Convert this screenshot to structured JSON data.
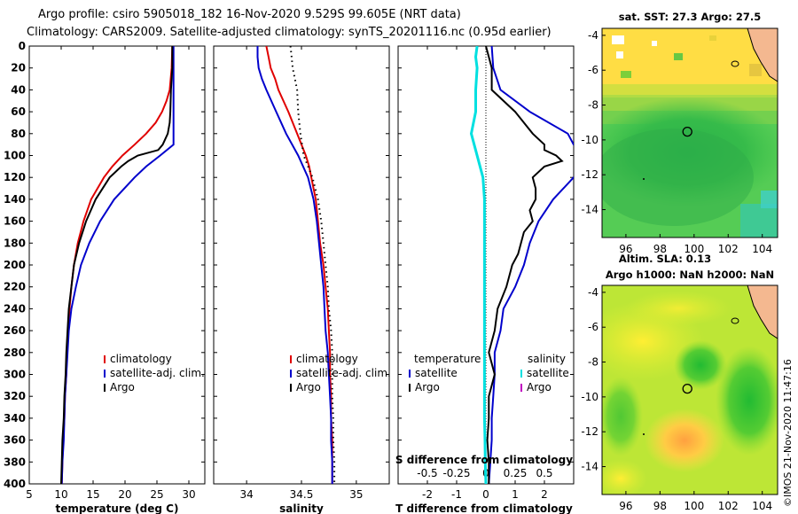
{
  "figure": {
    "title_line1": "Argo profile: csiro 5905018_182 16-Nov-2020 9.529S 99.605E (NRT data)",
    "title_line2": "Climatology: CARS2009. Satellite-adjusted climatology: synTS_20201116.nc (0.95d earlier)",
    "footer": "©IMOS 21-Nov-2020 11:47:16",
    "colors": {
      "climatology": "#e00000",
      "satellite": "#0000cc",
      "argo": "#000000",
      "salinity_satellite": "#00e0e0",
      "salinity_argo": "#c000c0"
    }
  },
  "chart_data": [
    {
      "id": "temperature",
      "type": "line",
      "xlabel": "temperature (deg C)",
      "ylabel": "depth",
      "xlim": [
        5,
        32.5
      ],
      "ylim": [
        400,
        0
      ],
      "xticks": [
        5,
        10,
        15,
        20,
        25,
        30
      ],
      "yticks": [
        0,
        20,
        40,
        60,
        80,
        100,
        120,
        140,
        160,
        180,
        200,
        220,
        240,
        260,
        280,
        300,
        320,
        340,
        360,
        380,
        400
      ],
      "legend": [
        "climatology",
        "satellite-adj. clim.",
        "Argo"
      ],
      "series": [
        {
          "name": "climatology",
          "depth": [
            0,
            20,
            40,
            50,
            60,
            70,
            80,
            90,
            100,
            110,
            120,
            140,
            160,
            180,
            200,
            220,
            240,
            260,
            280,
            300,
            320,
            340,
            360,
            380,
            400
          ],
          "value": [
            27.4,
            27.3,
            27.0,
            26.5,
            25.8,
            24.8,
            23.3,
            21.5,
            19.6,
            18.0,
            16.7,
            14.7,
            13.5,
            12.6,
            12.0,
            11.6,
            11.3,
            11.1,
            10.9,
            10.8,
            10.6,
            10.5,
            10.3,
            10.2,
            10.1
          ]
        },
        {
          "name": "satellite-adj. clim.",
          "depth": [
            0,
            20,
            40,
            60,
            80,
            90,
            100,
            110,
            120,
            140,
            160,
            180,
            200,
            220,
            240,
            260,
            280,
            300,
            320,
            340,
            360,
            380,
            400
          ],
          "value": [
            27.6,
            27.6,
            27.6,
            27.6,
            27.6,
            27.6,
            25.5,
            23.3,
            21.5,
            18.3,
            16.1,
            14.4,
            13.1,
            12.3,
            11.6,
            11.2,
            11.0,
            10.8,
            10.6,
            10.5,
            10.4,
            10.2,
            10.1
          ]
        },
        {
          "name": "Argo",
          "depth": [
            0,
            20,
            40,
            60,
            70,
            80,
            90,
            95,
            100,
            105,
            110,
            120,
            140,
            160,
            180,
            200,
            220,
            240,
            260,
            280,
            300,
            320,
            340,
            360,
            380,
            400
          ],
          "value": [
            27.4,
            27.4,
            27.2,
            27.1,
            27.0,
            26.7,
            25.9,
            25.2,
            22.0,
            20.5,
            19.4,
            17.6,
            15.4,
            13.9,
            12.8,
            12.0,
            11.6,
            11.2,
            11.0,
            10.8,
            10.7,
            10.5,
            10.4,
            10.2,
            10.1,
            10.0
          ]
        }
      ]
    },
    {
      "id": "salinity",
      "type": "line",
      "xlabel": "salinity",
      "xlim": [
        33.7,
        35.3
      ],
      "ylim": [
        400,
        0
      ],
      "xticks": [
        34,
        34.5,
        35
      ],
      "legend": [
        "climatology",
        "satellite-adj. clim.",
        "Argo"
      ],
      "series": [
        {
          "name": "climatology",
          "depth": [
            0,
            10,
            20,
            30,
            40,
            60,
            80,
            100,
            110,
            120,
            140,
            160,
            180,
            200,
            220,
            240,
            260,
            280,
            300,
            320,
            340,
            360,
            380,
            400
          ],
          "value": [
            34.18,
            34.2,
            34.22,
            34.26,
            34.29,
            34.38,
            34.46,
            34.54,
            34.57,
            34.59,
            34.63,
            34.65,
            34.67,
            34.7,
            34.72,
            34.74,
            34.75,
            34.76,
            34.76,
            34.77,
            34.77,
            34.78,
            34.78,
            34.78
          ]
        },
        {
          "name": "satellite-adj. clim.",
          "depth": [
            0,
            10,
            20,
            30,
            40,
            60,
            80,
            100,
            120,
            140,
            160,
            180,
            200,
            220,
            240,
            260,
            280,
            300,
            320,
            340,
            360,
            380,
            400
          ],
          "value": [
            34.1,
            34.1,
            34.11,
            34.14,
            34.18,
            34.27,
            34.36,
            34.47,
            34.56,
            34.61,
            34.64,
            34.66,
            34.68,
            34.7,
            34.71,
            34.72,
            34.74,
            34.75,
            34.76,
            34.77,
            34.77,
            34.78,
            34.78
          ]
        },
        {
          "name": "Argo",
          "style": "dotted",
          "depth": [
            0,
            10,
            20,
            30,
            40,
            60,
            80,
            100,
            120,
            140,
            160,
            180,
            200,
            220,
            240,
            260,
            280,
            300,
            320,
            340,
            360,
            380,
            400
          ],
          "value": [
            34.4,
            34.41,
            34.42,
            34.44,
            34.46,
            34.47,
            34.49,
            34.52,
            34.6,
            34.65,
            34.68,
            34.7,
            34.72,
            34.74,
            34.75,
            34.77,
            34.78,
            34.78,
            34.78,
            34.79,
            34.79,
            34.8,
            34.8
          ]
        }
      ]
    },
    {
      "id": "difference",
      "type": "line",
      "xlabel": "T difference from climatology",
      "xlabel_top": "S difference from climatology",
      "xlim": [
        -3,
        3
      ],
      "ylim": [
        400,
        0
      ],
      "xticks": [
        -2,
        -1,
        0,
        1,
        2
      ],
      "xticks_top": [
        -0.5,
        -0.25,
        0,
        0.25,
        0.5
      ],
      "legend_left_title": "temperature",
      "legend_right_title": "salinity",
      "legend_left": [
        "satellite",
        "Argo"
      ],
      "legend_right": [
        "satellite",
        "Argo"
      ],
      "series": [
        {
          "name": "satellite T",
          "depth": [
            0,
            20,
            40,
            60,
            80,
            90,
            100,
            110,
            120,
            140,
            160,
            180,
            200,
            220,
            240,
            260,
            280,
            300,
            320,
            340,
            360,
            380,
            400
          ],
          "value": [
            0.2,
            0.25,
            0.5,
            1.5,
            2.8,
            3.0,
            5.0,
            4.5,
            3.0,
            2.3,
            1.8,
            1.5,
            1.3,
            1.0,
            0.6,
            0.5,
            0.3,
            0.3,
            0.25,
            0.2,
            0.2,
            0.15,
            0.1
          ]
        },
        {
          "name": "Argo T",
          "depth": [
            0,
            10,
            20,
            40,
            60,
            80,
            90,
            95,
            100,
            105,
            110,
            120,
            130,
            140,
            150,
            160,
            170,
            180,
            190,
            200,
            210,
            220,
            240,
            260,
            280,
            300,
            320,
            340,
            360,
            380,
            400
          ],
          "value": [
            0,
            0.1,
            0.2,
            0.2,
            1.0,
            1.6,
            2.0,
            2.0,
            2.4,
            2.6,
            2.0,
            1.6,
            1.7,
            1.7,
            1.5,
            1.6,
            1.3,
            1.2,
            1.1,
            0.9,
            0.8,
            0.7,
            0.4,
            0.3,
            0.1,
            0.3,
            0.1,
            0.1,
            0.05,
            0.1,
            0.1
          ]
        },
        {
          "name": "satellite S",
          "depth": [
            0,
            10,
            20,
            40,
            60,
            80,
            100,
            120,
            140,
            160,
            180,
            200,
            220,
            240,
            260,
            280,
            300,
            320,
            340,
            360,
            380,
            400
          ],
          "value": [
            -0.3,
            -0.35,
            -0.3,
            -0.35,
            -0.35,
            -0.5,
            -0.3,
            -0.1,
            -0.05,
            -0.05,
            -0.05,
            -0.05,
            -0.05,
            -0.05,
            -0.05,
            -0.05,
            -0.05,
            -0.05,
            -0.05,
            -0.03,
            -0.02,
            0
          ]
        }
      ]
    },
    {
      "id": "sst-map",
      "type": "heatmap",
      "title": "sat. SST: 27.3 Argo: 27.5",
      "xlim": [
        94.6,
        104.9
      ],
      "ylim": [
        -15.6,
        -3.6
      ],
      "xticks": [
        96,
        98,
        100,
        102,
        104
      ],
      "yticks": [
        -4,
        -6,
        -8,
        -10,
        -12,
        -14
      ],
      "argo_location": [
        99.605,
        -9.529
      ]
    },
    {
      "id": "sla-map",
      "type": "heatmap",
      "title_line1": "Altim. SLA: 0.13",
      "title_line2": "Argo h1000: NaN h2000: NaN",
      "xlim": [
        94.6,
        104.9
      ],
      "ylim": [
        -15.6,
        -3.6
      ],
      "xticks": [
        96,
        98,
        100,
        102,
        104
      ],
      "yticks": [
        -4,
        -6,
        -8,
        -10,
        -12,
        -14
      ],
      "argo_location": [
        99.605,
        -9.529
      ]
    }
  ]
}
